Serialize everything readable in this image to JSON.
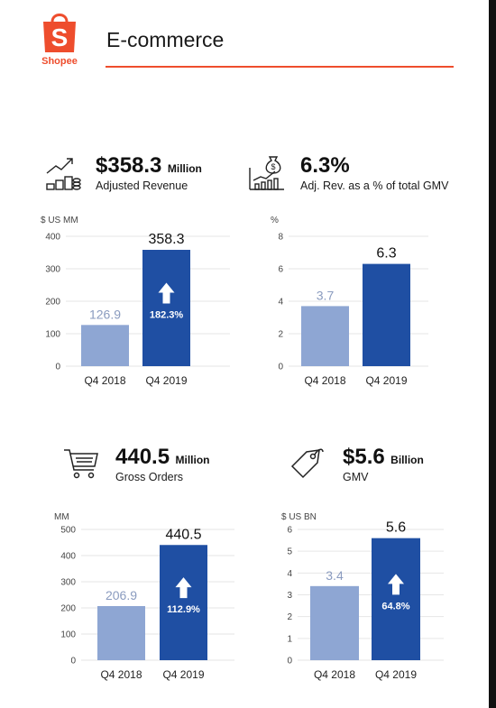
{
  "header": {
    "brand": "Shopee",
    "title": "E-commerce"
  },
  "colors": {
    "brand_orange": "#ee4d2d",
    "bar_2018": "#8ea6d3",
    "bar_2019": "#1f4fa3",
    "rule": "#ee4d2d"
  },
  "kpis": [
    {
      "value": "$358.3",
      "unit": "Million",
      "label": "Adjusted Revenue",
      "icon": "growth-chart-coins-icon"
    },
    {
      "value": "6.3%",
      "unit": "",
      "label": "Adj. Rev. as a % of total GMV",
      "icon": "money-bag-chart-icon"
    },
    {
      "value": "440.5",
      "unit": "Million",
      "label": "Gross Orders",
      "icon": "shopping-cart-icon"
    },
    {
      "value": "$5.6",
      "unit": "Billion",
      "label": "GMV",
      "icon": "price-tag-icon"
    }
  ],
  "chart_data": [
    {
      "type": "bar",
      "unit_label": "$ US MM",
      "categories": [
        "Q4 2018",
        "Q4 2019"
      ],
      "values": [
        126.9,
        358.3
      ],
      "value_labels": [
        "126.9",
        "358.3"
      ],
      "growth_label": "182.3%",
      "ylim": [
        0,
        400
      ],
      "yticks": [
        0,
        100,
        200,
        300,
        400
      ],
      "grid": true
    },
    {
      "type": "bar",
      "unit_label": "%",
      "categories": [
        "Q4 2018",
        "Q4 2019"
      ],
      "values": [
        3.7,
        6.3
      ],
      "value_labels": [
        "3.7",
        "6.3"
      ],
      "growth_label": "",
      "ylim": [
        0,
        8
      ],
      "yticks": [
        0,
        2,
        4,
        6,
        8
      ],
      "grid": true
    },
    {
      "type": "bar",
      "unit_label": "MM",
      "categories": [
        "Q4 2018",
        "Q4 2019"
      ],
      "values": [
        206.9,
        440.5
      ],
      "value_labels": [
        "206.9",
        "440.5"
      ],
      "growth_label": "112.9%",
      "ylim": [
        0,
        500
      ],
      "yticks": [
        0,
        100,
        200,
        300,
        400,
        500
      ],
      "grid": true
    },
    {
      "type": "bar",
      "unit_label": "$ US BN",
      "categories": [
        "Q4 2018",
        "Q4 2019"
      ],
      "values": [
        3.4,
        5.6
      ],
      "value_labels": [
        "3.4",
        "5.6"
      ],
      "growth_label": "64.8%",
      "ylim": [
        0,
        6
      ],
      "yticks": [
        0,
        1,
        2,
        3,
        4,
        5,
        6
      ],
      "grid": true
    }
  ]
}
